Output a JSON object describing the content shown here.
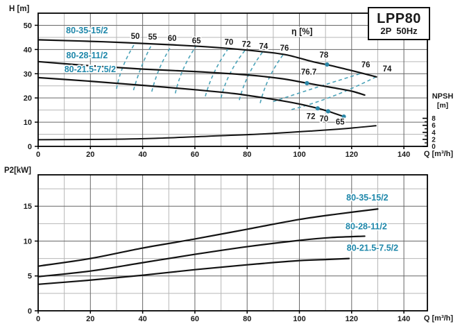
{
  "title_box": {
    "model": "LPP80",
    "line2": "2P  50Hz"
  },
  "colors": {
    "teal_label": "#1e87aa",
    "teal_dash": "#4aa2b8",
    "teal_dot": "#2b87a8",
    "curve": "#131313",
    "grid_major": "#666666",
    "grid_minor": "#b6b6b6",
    "frame": "#000000",
    "text": "#1a1a1a"
  },
  "chart_data": [
    {
      "type": "line",
      "id": "head-flow",
      "title": "Pump head curves",
      "ylabel": "H [m]",
      "xlabel": "Q [m³/h]",
      "eta_label": "η [%]",
      "eta_label_at": [
        101,
        46.2
      ],
      "x_range": [
        0,
        149
      ],
      "x_ticks": [
        0,
        20,
        40,
        60,
        80,
        100,
        120,
        140
      ],
      "x_minor_step": 10,
      "y_range": [
        0,
        55
      ],
      "y_ticks": [
        0,
        10,
        20,
        30,
        40,
        50
      ],
      "y_minor_step": 5,
      "grid": true,
      "legend_position": "on-curve",
      "series": [
        {
          "name": "80-35-15/2",
          "label_at": [
            18.7,
            46.7
          ],
          "points": [
            [
              0,
              44
            ],
            [
              25,
              43.2
            ],
            [
              50,
              42
            ],
            [
              70,
              40.7
            ],
            [
              85,
              39.2
            ],
            [
              95,
              37.8
            ],
            [
              105,
              35
            ],
            [
              112,
              33.4
            ],
            [
              120,
              31.3
            ],
            [
              129.5,
              28.7
            ]
          ],
          "dots": [
            [
              110.6,
              33.8
            ]
          ],
          "point_labels": [
            {
              "text": "78",
              "at": [
                109.4,
                36.6
              ]
            },
            {
              "text": "76",
              "at": [
                125.4,
                32.6
              ]
            },
            {
              "text": "74",
              "at": [
                133.6,
                31.0
              ]
            }
          ]
        },
        {
          "name": "80-28-11/2",
          "label_at": [
            18.7,
            36.4
          ],
          "points": [
            [
              0,
              35
            ],
            [
              20,
              33.3
            ],
            [
              40,
              31.9
            ],
            [
              60,
              30.9
            ],
            [
              80,
              29.5
            ],
            [
              93,
              28
            ],
            [
              103,
              26.1
            ],
            [
              113,
              24.2
            ],
            [
              120,
              22.8
            ],
            [
              125,
              21.2
            ]
          ],
          "dots": [
            [
              102.9,
              26.1
            ]
          ],
          "point_labels": [
            {
              "text": "76.7",
              "at": [
                103.6,
                29.7
              ]
            }
          ]
        },
        {
          "name": "80-21.5-7.5/2",
          "label_at": [
            19.9,
            30.7
          ],
          "points": [
            [
              0,
              28.4
            ],
            [
              20,
              26.9
            ],
            [
              40,
              25.2
            ],
            [
              60,
              23.4
            ],
            [
              75,
              21.8
            ],
            [
              89,
              19.6
            ],
            [
              100,
              17.5
            ],
            [
              107,
              15.7
            ],
            [
              111,
              14.5
            ],
            [
              117,
              12.3
            ]
          ],
          "dots": [
            [
              107,
              15.7
            ],
            [
              111,
              14.5
            ],
            [
              117,
              12.3
            ]
          ],
          "point_labels": [
            {
              "text": "72",
              "at": [
                104.4,
                11.3
              ]
            },
            {
              "text": "70",
              "at": [
                109.4,
                10.3
              ]
            },
            {
              "text": "65",
              "at": [
                115.6,
                9.0
              ]
            }
          ]
        }
      ],
      "npsh": {
        "label_lines": [
          "NPSH",
          "[m]"
        ],
        "range": [
          0,
          8.5
        ],
        "major_ticks": [
          0,
          2,
          4,
          6,
          8
        ],
        "minor_ticks": [
          1,
          3,
          5,
          7
        ],
        "points": [
          [
            0,
            1.9
          ],
          [
            25,
            2.0
          ],
          [
            45,
            2.3
          ],
          [
            65,
            2.9
          ],
          [
            85,
            3.5
          ],
          [
            105,
            4.4
          ],
          [
            118,
            5.1
          ],
          [
            129.5,
            5.9
          ]
        ]
      },
      "efficiency_contours": [
        {
          "label": "50",
          "label_at": [
            37.2,
            44.4
          ],
          "pts": [
            [
              30,
              23.8
            ],
            [
              32.5,
              33
            ],
            [
              36.8,
              42.1
            ]
          ]
        },
        {
          "label": "55",
          "label_at": [
            43.8,
            44.1
          ],
          "pts": [
            [
              36.5,
              23.2
            ],
            [
              39.5,
              32.8
            ],
            [
              43.4,
              41.9
            ]
          ]
        },
        {
          "label": "60",
          "label_at": [
            51.3,
            43.6
          ],
          "pts": [
            [
              43.5,
              22.6
            ],
            [
              46.5,
              32.3
            ],
            [
              51,
              41.5
            ]
          ]
        },
        {
          "label": "65",
          "label_at": [
            60.6,
            42.6
          ],
          "pts": [
            [
              52.5,
              21.9
            ],
            [
              55.5,
              31.8
            ],
            [
              60.3,
              41.1
            ]
          ]
        },
        {
          "label": "70",
          "label_at": [
            73.0,
            41.9
          ],
          "pts": [
            [
              64,
              20.7
            ],
            [
              67.5,
              30.8
            ],
            [
              72.8,
              40.4
            ]
          ]
        },
        {
          "label": "72",
          "label_at": [
            79.7,
            41.1
          ],
          "pts": [
            [
              70,
              20.0
            ],
            [
              73.5,
              30.2
            ],
            [
              79.3,
              39.8
            ]
          ]
        },
        {
          "label": "74",
          "label_at": [
            86.3,
            40.2
          ],
          "pts": [
            [
              77,
              19.1
            ],
            [
              80.5,
              29.4
            ],
            [
              86,
              39.1
            ]
          ]
        },
        {
          "label": "76",
          "label_at": [
            94.3,
            39.6
          ],
          "pts": [
            [
              85,
              17.9
            ],
            [
              88.5,
              28.4
            ],
            [
              94,
              38.2
            ]
          ]
        },
        {
          "label": "",
          "label_at": null,
          "pts": [
            [
              90,
              18.5
            ],
            [
              105,
              23.8
            ],
            [
              123.5,
              30.1
            ]
          ]
        },
        {
          "label": "",
          "label_at": null,
          "pts": [
            [
              97,
              15.2
            ],
            [
              113,
              20.8
            ],
            [
              129.3,
              28.7
            ]
          ]
        }
      ]
    },
    {
      "type": "line",
      "id": "power-flow",
      "title": "Pump shaft power curves",
      "ylabel": "P2[kW]",
      "xlabel": "Q [m³/h]",
      "x_range": [
        0,
        149
      ],
      "x_ticks": [
        0,
        20,
        40,
        60,
        80,
        100,
        120,
        140
      ],
      "x_minor_step": 10,
      "y_range": [
        0,
        19.5
      ],
      "y_ticks": [
        0,
        5,
        10,
        15
      ],
      "y_minor_step": 2.5,
      "grid": true,
      "legend_position": "right-of-curve",
      "series": [
        {
          "name": "80-35-15/2",
          "label_at": [
            126,
            15.8
          ],
          "points": [
            [
              0,
              6.4
            ],
            [
              20,
              7.5
            ],
            [
              40,
              9.0
            ],
            [
              60,
              10.3
            ],
            [
              80,
              11.7
            ],
            [
              100,
              13.1
            ],
            [
              115,
              13.9
            ],
            [
              130,
              14.6
            ]
          ]
        },
        {
          "name": "80-28-11/2",
          "label_at": [
            125.6,
            11.7
          ],
          "points": [
            [
              0,
              4.9
            ],
            [
              20,
              5.7
            ],
            [
              40,
              6.9
            ],
            [
              60,
              8.1
            ],
            [
              80,
              9.2
            ],
            [
              100,
              10.1
            ],
            [
              112,
              10.5
            ],
            [
              125,
              10.7
            ]
          ]
        },
        {
          "name": "80-21.5-7.5/2",
          "label_at": [
            128,
            8.6
          ],
          "points": [
            [
              0,
              3.8
            ],
            [
              20,
              4.4
            ],
            [
              40,
              5.1
            ],
            [
              60,
              5.9
            ],
            [
              80,
              6.6
            ],
            [
              100,
              7.2
            ],
            [
              110,
              7.35
            ],
            [
              119,
              7.5
            ]
          ]
        }
      ]
    }
  ]
}
